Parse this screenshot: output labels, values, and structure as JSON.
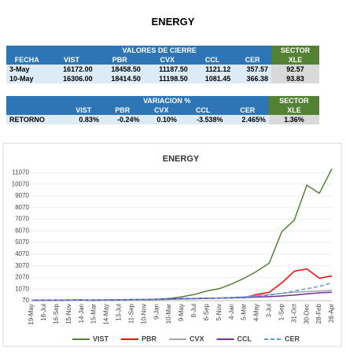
{
  "header": {
    "title": "ENERGY"
  },
  "table1": {
    "group_header": "VALORES DE CIERRE",
    "sector_header": "SECTOR",
    "columns": [
      "FECHA",
      "VIST",
      "PBR",
      "CVX",
      "CCL",
      "CER",
      "XLE"
    ],
    "rows": [
      [
        "3-May",
        "16172.00",
        "18458.50",
        "11187.50",
        "1121.12",
        "357.57",
        "92.57"
      ],
      [
        "10-May",
        "16306.00",
        "18414.50",
        "11198.50",
        "1081.45",
        "366.38",
        "93.83"
      ]
    ]
  },
  "table2": {
    "group_header": "VARIACION %",
    "sector_header": "SECTOR",
    "columns": [
      "VIST",
      "PBR",
      "CVX",
      "CCL",
      "CER",
      "XLE"
    ],
    "rows": [
      [
        "RETORNO",
        "0.83%",
        "-0.24%",
        "0.10%",
        "-3.538%",
        "2.465%",
        "1.36%"
      ]
    ]
  },
  "chart_data": {
    "type": "line",
    "title": "ENERGY",
    "categories": [
      "19-May",
      "18-Jul",
      "16-Sep",
      "15-Nov",
      "14-Jan",
      "15-Mar",
      "14-May",
      "13-Jul",
      "11-Sep",
      "10-Nov",
      "9-Jan",
      "10-Mar",
      "9-May",
      "8-Jul",
      "6-Sep",
      "5-Nov",
      "4-Jan",
      "5-Mar",
      "4-May",
      "3-Jul",
      "1-Sep",
      "31-Oct",
      "30-Dec",
      "28-Feb",
      "28-Apr"
    ],
    "series": [
      {
        "name": "VIST",
        "color": "#548235",
        "style": "solid",
        "values": [
          100,
          110,
          120,
          130,
          140,
          90,
          120,
          150,
          170,
          160,
          200,
          260,
          400,
          600,
          900,
          1100,
          1500,
          2000,
          2600,
          3300,
          6000,
          7000,
          10000,
          9300,
          11400
        ]
      },
      {
        "name": "PBR",
        "color": "#ff0000",
        "style": "solid",
        "values": [
          100,
          110,
          105,
          120,
          130,
          80,
          100,
          120,
          130,
          140,
          180,
          200,
          250,
          260,
          280,
          300,
          320,
          350,
          600,
          800,
          1600,
          2600,
          2800,
          2000,
          2200
        ]
      },
      {
        "name": "CVX",
        "color": "#a5a5a5",
        "style": "solid",
        "values": [
          100,
          105,
          110,
          110,
          120,
          80,
          90,
          100,
          110,
          120,
          150,
          180,
          220,
          250,
          280,
          300,
          350,
          400,
          500,
          600,
          700,
          800,
          850,
          900,
          950
        ]
      },
      {
        "name": "CCL",
        "color": "#7030a0",
        "style": "solid",
        "values": [
          100,
          110,
          115,
          120,
          125,
          130,
          140,
          150,
          160,
          170,
          190,
          210,
          230,
          250,
          270,
          290,
          310,
          340,
          380,
          420,
          480,
          550,
          650,
          750,
          800
        ]
      },
      {
        "name": "CER",
        "color": "#5b9bd5",
        "style": "dashed",
        "values": [
          100,
          105,
          110,
          115,
          120,
          125,
          130,
          140,
          150,
          160,
          170,
          190,
          210,
          230,
          260,
          290,
          330,
          380,
          450,
          550,
          700,
          900,
          1100,
          1300,
          1600
        ]
      }
    ],
    "ylim": [
      70,
      11570
    ],
    "yticks": [
      70,
      1070,
      2070,
      3070,
      4070,
      5070,
      6070,
      7070,
      8070,
      9070,
      10070,
      11070
    ],
    "grid": true,
    "legend": "bottom"
  }
}
